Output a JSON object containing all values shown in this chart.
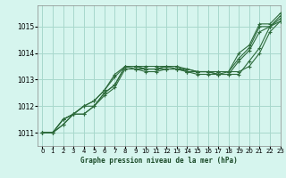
{
  "xlabel": "Graphe pression niveau de la mer (hPa)",
  "background_color": "#d6f5ee",
  "grid_color": "#a8d8cc",
  "line_color": "#2d6b3c",
  "xlim": [
    -0.5,
    23
  ],
  "ylim": [
    1010.5,
    1015.8
  ],
  "yticks": [
    1011,
    1012,
    1013,
    1014,
    1015
  ],
  "xticks": [
    0,
    1,
    2,
    3,
    4,
    5,
    6,
    7,
    8,
    9,
    10,
    11,
    12,
    13,
    14,
    15,
    16,
    17,
    18,
    19,
    20,
    21,
    22,
    23
  ],
  "series": [
    [
      1011.0,
      1011.0,
      1011.5,
      1011.7,
      1011.7,
      1012.0,
      1012.5,
      1012.8,
      1013.5,
      1013.5,
      1013.4,
      1013.4,
      1013.5,
      1013.4,
      1013.4,
      1013.3,
      1013.3,
      1013.2,
      1013.2,
      1013.2,
      1013.7,
      1014.2,
      1015.0,
      1015.2
    ],
    [
      1011.0,
      1011.0,
      1011.5,
      1011.7,
      1012.0,
      1012.2,
      1012.6,
      1013.1,
      1013.5,
      1013.5,
      1013.4,
      1013.4,
      1013.5,
      1013.5,
      1013.3,
      1013.3,
      1013.3,
      1013.3,
      1013.3,
      1013.3,
      1013.5,
      1014.0,
      1014.8,
      1015.2
    ],
    [
      1011.0,
      1011.0,
      1011.3,
      1011.7,
      1011.7,
      1012.0,
      1012.4,
      1012.7,
      1013.4,
      1013.4,
      1013.3,
      1013.3,
      1013.4,
      1013.4,
      1013.3,
      1013.2,
      1013.2,
      1013.2,
      1013.2,
      1013.7,
      1014.1,
      1014.8,
      1015.0,
      1015.3
    ],
    [
      1011.0,
      1011.0,
      1011.3,
      1011.7,
      1012.0,
      1012.0,
      1012.5,
      1012.8,
      1013.5,
      1013.4,
      1013.4,
      1013.4,
      1013.4,
      1013.4,
      1013.3,
      1013.3,
      1013.3,
      1013.2,
      1013.3,
      1013.8,
      1014.2,
      1015.0,
      1015.0,
      1015.4
    ],
    [
      1011.0,
      1011.0,
      1011.5,
      1011.7,
      1012.0,
      1012.2,
      1012.6,
      1013.2,
      1013.5,
      1013.5,
      1013.5,
      1013.5,
      1013.5,
      1013.5,
      1013.4,
      1013.3,
      1013.3,
      1013.3,
      1013.3,
      1014.0,
      1014.3,
      1015.1,
      1015.1,
      1015.5
    ]
  ]
}
